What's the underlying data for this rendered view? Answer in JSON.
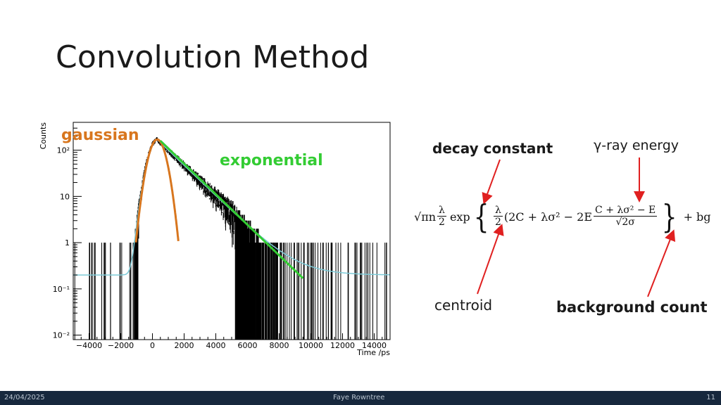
{
  "slide": {
    "title": "Convolution Method"
  },
  "annotations": {
    "gaussian": "gaussian",
    "exponential": "exponential",
    "decay_constant": "decay constant",
    "gamma_energy": "γ-ray energy",
    "centroid": "centroid",
    "background_count": "background count"
  },
  "formula": {
    "prefix": "√πn",
    "frac1_num": "λ",
    "frac1_den": "2",
    "exp": "exp",
    "frac2_num": "λ",
    "frac2_den": "2",
    "mid": "(2C + λσ² − 2E",
    "frac3_num": "C + λσ² − E",
    "frac3_den": "√2σ",
    "suffix": "+ bg"
  },
  "chart_data": {
    "type": "scatter",
    "title": "",
    "xlabel": "Time /ps",
    "ylabel": "Counts",
    "xlim": [
      -5000,
      15000
    ],
    "ylim": [
      0.008,
      400
    ],
    "yscale": "log",
    "x_ticks": [
      "−4000",
      "−2000",
      "0",
      "2000",
      "4000",
      "6000",
      "8000",
      "10000",
      "12000",
      "14000"
    ],
    "x_tick_values": [
      -4000,
      -2000,
      0,
      2000,
      4000,
      6000,
      8000,
      10000,
      12000,
      14000
    ],
    "y_ticks": [
      "10⁻²",
      "10⁻¹",
      "1",
      "10",
      "10²"
    ],
    "y_tick_values": [
      0.01,
      0.1,
      1,
      10,
      100
    ],
    "grid": false,
    "series": [
      {
        "name": "gaussian",
        "color": "#d8761e",
        "centroid": 300,
        "sigma": 420,
        "peak": 170
      },
      {
        "name": "exponential",
        "color": "#33cc33",
        "x": [
          500,
          9500
        ],
        "y": [
          160,
          0.17
        ]
      },
      {
        "color": "#7ecbd8",
        "background": 0.2,
        "peak": 170
      }
    ]
  },
  "footer": {
    "date": "24/04/2025",
    "author": "Faye Rowntree",
    "page": "11"
  },
  "colors": {
    "arrow": "#e02020",
    "footer_bg": "#17283d"
  }
}
